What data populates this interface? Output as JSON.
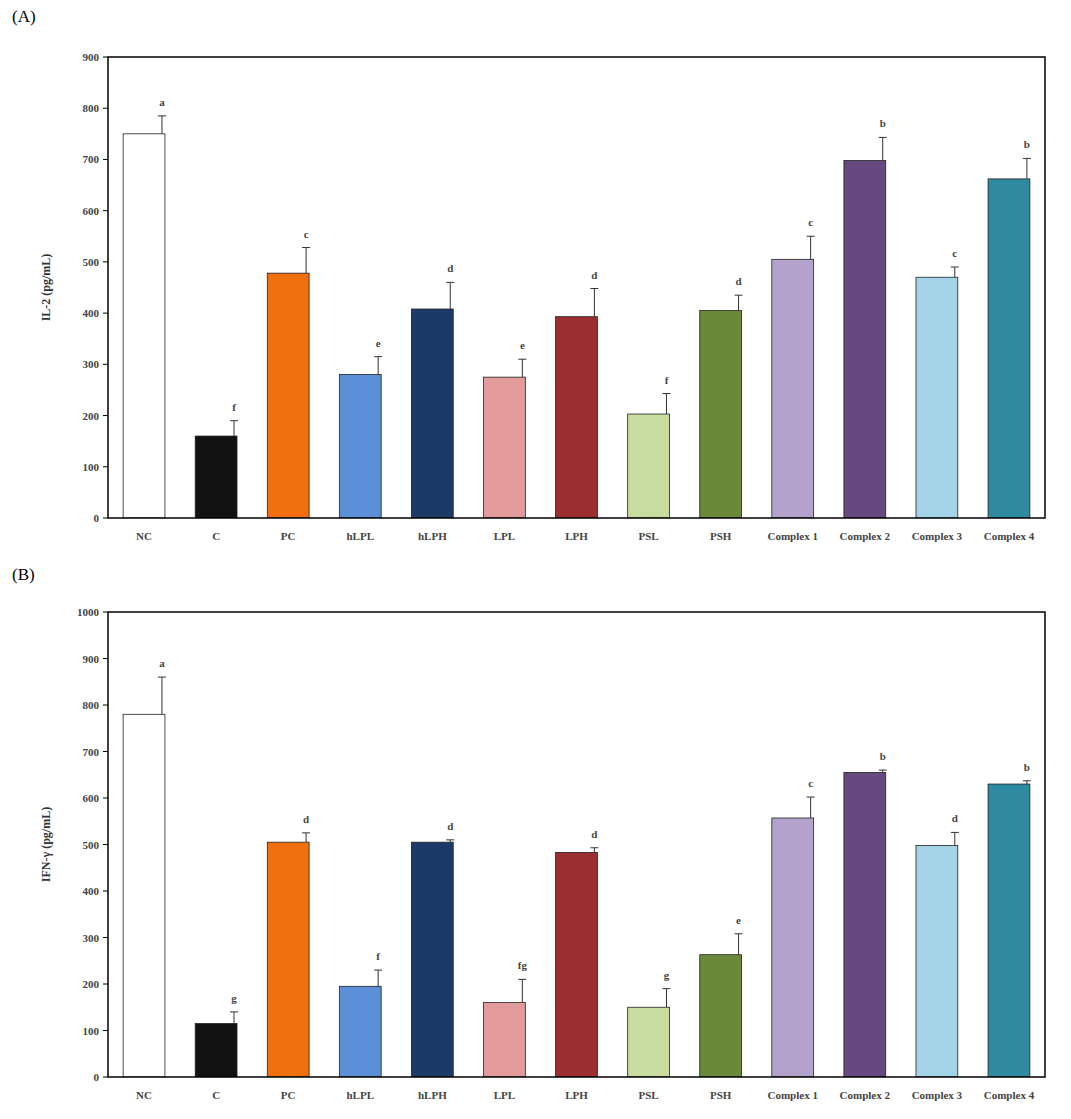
{
  "chart_data": [
    {
      "type": "bar",
      "title": "(A)",
      "ylabel": "IL-2 (pg/mL)",
      "categories": [
        "NC",
        "C",
        "PC",
        "hLPL",
        "hLPH",
        "LPL",
        "LPH",
        "PSL",
        "PSH",
        "Complex 1",
        "Complex 2",
        "Complex 3",
        "Complex 4"
      ],
      "values": [
        750,
        160,
        478,
        280,
        408,
        275,
        393,
        203,
        405,
        505,
        698,
        470,
        662
      ],
      "errors": [
        35,
        30,
        50,
        35,
        52,
        35,
        55,
        40,
        30,
        45,
        45,
        20,
        40
      ],
      "annotations": [
        "a",
        "f",
        "c",
        "e",
        "d",
        "e",
        "d",
        "f",
        "d",
        "c",
        "b",
        "c",
        "b"
      ],
      "colors": [
        "#ffffff",
        "#111111",
        "#f07010",
        "#5b8fd8",
        "#1c3a68",
        "#e39a9a",
        "#9c2e30",
        "#c8dca0",
        "#6a8a3a",
        "#b3a3cc",
        "#66497e",
        "#a3d3e6",
        "#2e8aa0"
      ],
      "ylim": [
        0,
        900
      ],
      "yticks": [
        0,
        100,
        200,
        300,
        400,
        500,
        600,
        700,
        800,
        900
      ],
      "grid": false
    },
    {
      "type": "bar",
      "title": "(B)",
      "ylabel": "IFN-γ (pg/mL)",
      "categories": [
        "NC",
        "C",
        "PC",
        "hLPL",
        "hLPH",
        "LPL",
        "LPH",
        "PSL",
        "PSH",
        "Complex 1",
        "Complex 2",
        "Complex 3",
        "Complex 4"
      ],
      "values": [
        780,
        115,
        505,
        195,
        505,
        160,
        483,
        150,
        263,
        557,
        655,
        498,
        630
      ],
      "errors": [
        80,
        25,
        20,
        35,
        5,
        50,
        10,
        40,
        45,
        45,
        5,
        28,
        7
      ],
      "annotations": [
        "a",
        "g",
        "d",
        "f",
        "d",
        "fg",
        "d",
        "g",
        "e",
        "c",
        "b",
        "d",
        "b"
      ],
      "colors": [
        "#ffffff",
        "#111111",
        "#f07010",
        "#5b8fd8",
        "#1c3a68",
        "#e39a9a",
        "#9c2e30",
        "#c8dca0",
        "#6a8a3a",
        "#b3a3cc",
        "#66497e",
        "#a3d3e6",
        "#2e8aa0"
      ],
      "ylim": [
        0,
        1000
      ],
      "yticks": [
        0,
        100,
        200,
        300,
        400,
        500,
        600,
        700,
        800,
        900,
        1000
      ],
      "grid": false
    }
  ]
}
